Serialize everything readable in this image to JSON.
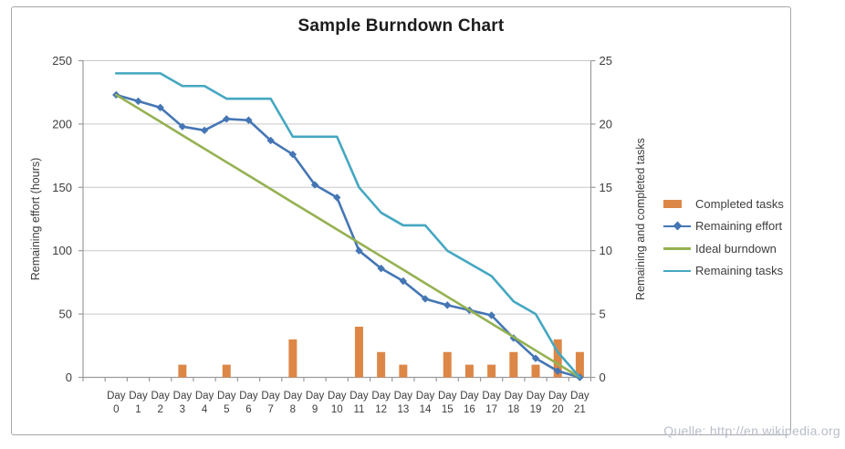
{
  "chart": {
    "title": "Sample Burndown Chart",
    "source_note": "Quelle: http://en.wikipedia.org",
    "left_axis": {
      "title": "Remaining effort (hours)",
      "ticks": [
        250,
        200,
        150,
        100,
        50,
        0
      ]
    },
    "right_axis": {
      "title": "Remaining and completed tasks",
      "ticks": [
        25,
        20,
        15,
        10,
        5,
        0
      ]
    },
    "colors": {
      "completed_tasks": "#dd8747",
      "remaining_effort": "#4576b4",
      "ideal_burndown": "#95b152",
      "remaining_tasks": "#45a7c1",
      "gridline": "#c9c9c9",
      "axis_line": "#9b9b9b",
      "tick_label": "#3d3d3d"
    }
  },
  "chart_data": {
    "type": "combo",
    "title": "Sample Burndown Chart",
    "categories": [
      "Day 0",
      "Day 1",
      "Day 2",
      "Day 3",
      "Day 4",
      "Day 5",
      "Day 6",
      "Day 7",
      "Day 8",
      "Day 9",
      "Day 10",
      "Day 11",
      "Day 12",
      "Day 13",
      "Day 14",
      "Day 15",
      "Day 16",
      "Day 17",
      "Day 18",
      "Day 19",
      "Day 20",
      "Day 21"
    ],
    "left_ylabel": "Remaining effort (hours)",
    "right_ylabel": "Remaining and completed tasks",
    "left_ylim": [
      0,
      250
    ],
    "right_ylim": [
      0,
      25
    ],
    "grid": true,
    "legend_position": "right",
    "series": [
      {
        "name": "Completed tasks",
        "type": "bar",
        "axis": "right",
        "color": "#dd8747",
        "values": [
          0,
          0,
          0,
          1,
          0,
          1,
          0,
          0,
          3,
          0,
          0,
          4,
          2,
          1,
          0,
          2,
          1,
          1,
          2,
          1,
          3,
          2
        ]
      },
      {
        "name": "Remaining effort",
        "type": "line",
        "marker": "diamond",
        "axis": "left",
        "color": "#4576b4",
        "values": [
          223,
          218,
          213,
          198,
          195,
          204,
          203,
          187,
          176,
          152,
          142,
          100,
          86,
          76,
          62,
          57,
          53,
          49,
          31,
          15,
          5,
          0
        ]
      },
      {
        "name": "Ideal burndown",
        "type": "line",
        "marker": "none",
        "axis": "left",
        "color": "#95b152",
        "values": [
          223,
          212.4,
          201.8,
          191.1,
          180.5,
          169.9,
          159.3,
          148.7,
          138,
          127.4,
          116.8,
          106.2,
          95.6,
          85,
          74.3,
          63.7,
          53.1,
          42.5,
          31.9,
          21.2,
          10.6,
          0
        ]
      },
      {
        "name": "Remaining tasks",
        "type": "line",
        "marker": "none",
        "axis": "right",
        "color": "#45a7c1",
        "values": [
          24,
          24,
          24,
          23,
          23,
          22,
          22,
          22,
          19,
          19,
          19,
          15,
          13,
          12,
          12,
          10,
          9,
          8,
          6,
          5,
          2,
          0
        ]
      }
    ]
  }
}
